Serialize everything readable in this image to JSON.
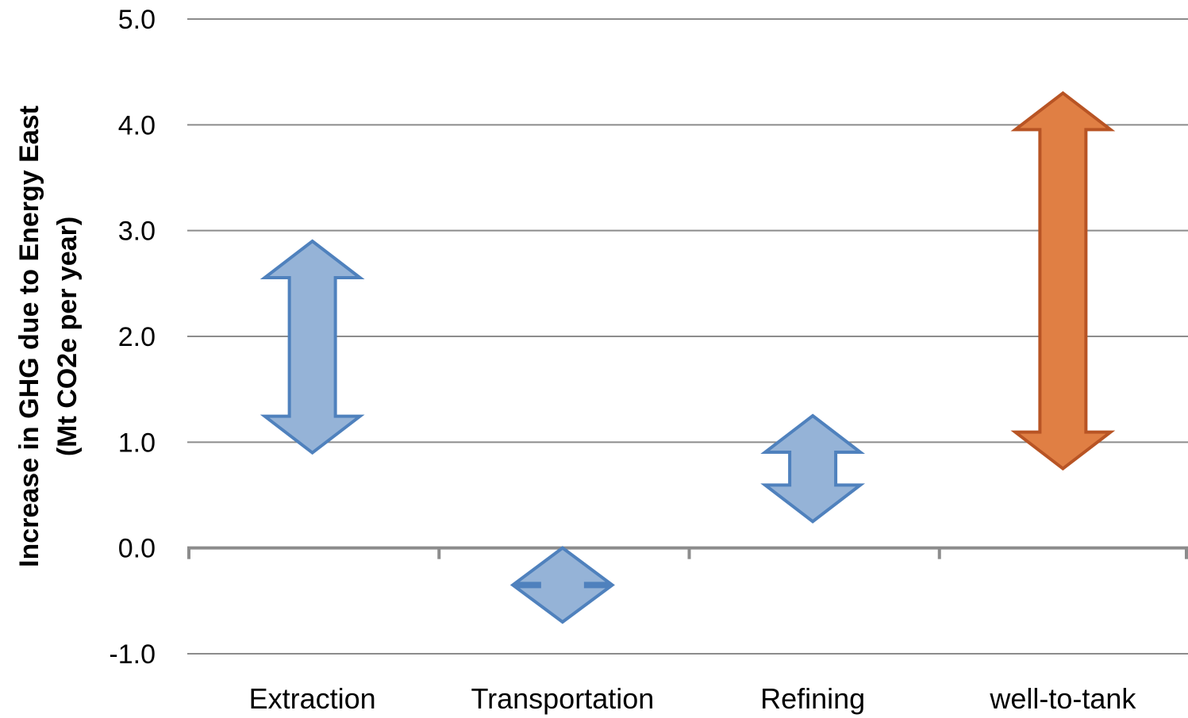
{
  "chart_data": {
    "type": "range-arrow",
    "title": "",
    "xlabel": "",
    "ylabel": "Increase in GHG due to Energy East",
    "ylabel_line2": "(Mt CO2e per year)",
    "ylim": [
      -1.0,
      5.0
    ],
    "yticks": [
      "-1.0",
      "0.0",
      "1.0",
      "2.0",
      "3.0",
      "4.0",
      "5.0"
    ],
    "ytick_values": [
      -1.0,
      0.0,
      1.0,
      2.0,
      3.0,
      4.0,
      5.0
    ],
    "grid": true,
    "categories": [
      "Extraction",
      "Transportation",
      "Refining",
      "well-to-tank"
    ],
    "ranges": [
      {
        "category": "Extraction",
        "low": 0.9,
        "high": 2.9,
        "color": "#95b3d7",
        "stroke": "#4f81bd"
      },
      {
        "category": "Transportation",
        "low": -0.7,
        "high": 0.0,
        "color": "#95b3d7",
        "stroke": "#4f81bd"
      },
      {
        "category": "Refining",
        "low": 0.25,
        "high": 1.25,
        "color": "#95b3d7",
        "stroke": "#4f81bd"
      },
      {
        "category": "well-to-tank",
        "low": 0.75,
        "high": 4.3,
        "color": "#e07f44",
        "stroke": "#b85424"
      }
    ]
  }
}
